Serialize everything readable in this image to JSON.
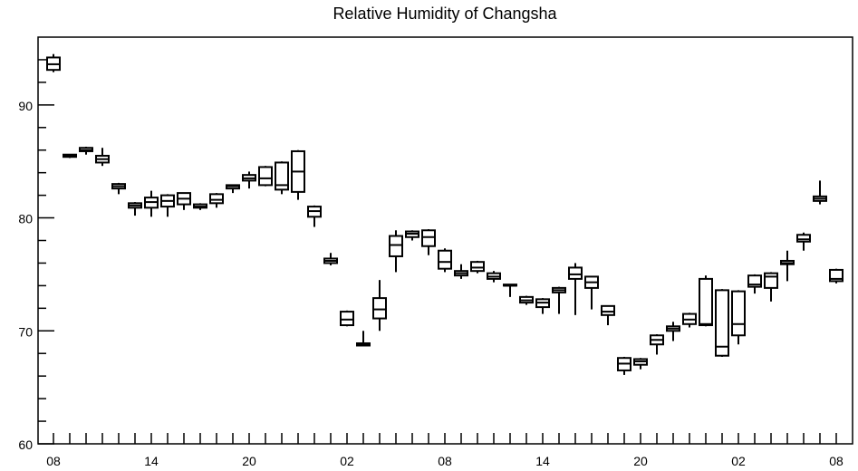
{
  "chart_data": {
    "type": "box",
    "title": "Relative Humidity of Changsha",
    "xlabel": "",
    "ylabel": "",
    "ylim": [
      60,
      96
    ],
    "y_ticks": [
      60,
      70,
      80,
      90
    ],
    "x_ticks": [
      "08",
      "14",
      "20",
      "02",
      "08",
      "14",
      "20",
      "02",
      "08"
    ],
    "x_tick_hours": [
      0,
      6,
      12,
      18,
      24,
      30,
      36,
      42,
      48
    ],
    "grid": false,
    "boxes": [
      {
        "hour": 0,
        "min": 92.9,
        "q1": 93.1,
        "median": 93.6,
        "q3": 94.2,
        "max": 94.5
      },
      {
        "hour": 1,
        "min": 85.3,
        "q1": 85.4,
        "median": 85.5,
        "q3": 85.6,
        "max": 85.6
      },
      {
        "hour": 2,
        "min": 85.6,
        "q1": 85.9,
        "median": 86.0,
        "q3": 86.2,
        "max": 86.3
      },
      {
        "hour": 3,
        "min": 84.6,
        "q1": 84.9,
        "median": 85.2,
        "q3": 85.5,
        "max": 86.2
      },
      {
        "hour": 4,
        "min": 82.1,
        "q1": 82.6,
        "median": 82.8,
        "q3": 83.0,
        "max": 83.1
      },
      {
        "hour": 5,
        "min": 80.2,
        "q1": 80.9,
        "median": 81.1,
        "q3": 81.3,
        "max": 81.4
      },
      {
        "hour": 6,
        "min": 80.1,
        "q1": 80.9,
        "median": 81.4,
        "q3": 81.8,
        "max": 82.4
      },
      {
        "hour": 7,
        "min": 80.1,
        "q1": 81.0,
        "median": 81.5,
        "q3": 82.0,
        "max": 82.1
      },
      {
        "hour": 8,
        "min": 80.7,
        "q1": 81.2,
        "median": 81.7,
        "q3": 82.2,
        "max": 82.2
      },
      {
        "hour": 9,
        "min": 80.7,
        "q1": 80.9,
        "median": 81.0,
        "q3": 81.2,
        "max": 81.3
      },
      {
        "hour": 10,
        "min": 80.9,
        "q1": 81.3,
        "median": 81.6,
        "q3": 82.1,
        "max": 82.2
      },
      {
        "hour": 11,
        "min": 82.2,
        "q1": 82.6,
        "median": 82.8,
        "q3": 82.9,
        "max": 82.9
      },
      {
        "hour": 12,
        "min": 82.6,
        "q1": 83.3,
        "median": 83.5,
        "q3": 83.8,
        "max": 84.1
      },
      {
        "hour": 13,
        "min": 82.8,
        "q1": 82.9,
        "median": 83.5,
        "q3": 84.5,
        "max": 84.6
      },
      {
        "hour": 14,
        "min": 82.1,
        "q1": 82.5,
        "median": 82.9,
        "q3": 84.9,
        "max": 85.0
      },
      {
        "hour": 15,
        "min": 81.6,
        "q1": 82.3,
        "median": 84.1,
        "q3": 85.9,
        "max": 86.0
      },
      {
        "hour": 16,
        "min": 79.2,
        "q1": 80.1,
        "median": 80.6,
        "q3": 81.0,
        "max": 81.1
      },
      {
        "hour": 17,
        "min": 75.8,
        "q1": 76.0,
        "median": 76.2,
        "q3": 76.4,
        "max": 76.9
      },
      {
        "hour": 18,
        "min": 70.4,
        "q1": 70.5,
        "median": 71.0,
        "q3": 71.7,
        "max": 71.8
      },
      {
        "hour": 19,
        "min": 68.7,
        "q1": 68.7,
        "median": 68.8,
        "q3": 68.9,
        "max": 70.0
      },
      {
        "hour": 20,
        "min": 70.0,
        "q1": 71.1,
        "median": 71.9,
        "q3": 72.9,
        "max": 74.5
      },
      {
        "hour": 21,
        "min": 75.2,
        "q1": 76.6,
        "median": 77.6,
        "q3": 78.4,
        "max": 78.9
      },
      {
        "hour": 22,
        "min": 78.0,
        "q1": 78.3,
        "median": 78.6,
        "q3": 78.8,
        "max": 78.9
      },
      {
        "hour": 23,
        "min": 76.7,
        "q1": 77.5,
        "median": 78.3,
        "q3": 78.9,
        "max": 79.0
      },
      {
        "hour": 24,
        "min": 75.2,
        "q1": 75.5,
        "median": 76.1,
        "q3": 77.1,
        "max": 77.3
      },
      {
        "hour": 25,
        "min": 74.6,
        "q1": 74.9,
        "median": 75.1,
        "q3": 75.3,
        "max": 75.9
      },
      {
        "hour": 26,
        "min": 75.1,
        "q1": 75.3,
        "median": 75.6,
        "q3": 76.1,
        "max": 76.2
      },
      {
        "hour": 27,
        "min": 74.3,
        "q1": 74.6,
        "median": 74.8,
        "q3": 75.1,
        "max": 75.3
      },
      {
        "hour": 28,
        "min": 73.0,
        "q1": 74.0,
        "median": 74.0,
        "q3": 74.1,
        "max": 74.1
      },
      {
        "hour": 29,
        "min": 72.3,
        "q1": 72.5,
        "median": 72.7,
        "q3": 73.0,
        "max": 73.1
      },
      {
        "hour": 30,
        "min": 71.5,
        "q1": 72.1,
        "median": 72.5,
        "q3": 72.8,
        "max": 72.9
      },
      {
        "hour": 31,
        "min": 71.5,
        "q1": 73.4,
        "median": 73.6,
        "q3": 73.8,
        "max": 73.9
      },
      {
        "hour": 32,
        "min": 71.4,
        "q1": 74.6,
        "median": 75.0,
        "q3": 75.6,
        "max": 76.0
      },
      {
        "hour": 33,
        "min": 71.9,
        "q1": 73.8,
        "median": 74.3,
        "q3": 74.8,
        "max": 74.8
      },
      {
        "hour": 34,
        "min": 70.5,
        "q1": 71.4,
        "median": 71.7,
        "q3": 72.2,
        "max": 72.2
      },
      {
        "hour": 35,
        "min": 66.1,
        "q1": 66.5,
        "median": 67.1,
        "q3": 67.6,
        "max": 67.7
      },
      {
        "hour": 36,
        "min": 66.6,
        "q1": 67.0,
        "median": 67.3,
        "q3": 67.5,
        "max": 67.6
      },
      {
        "hour": 37,
        "min": 67.9,
        "q1": 68.8,
        "median": 69.2,
        "q3": 69.6,
        "max": 69.7
      },
      {
        "hour": 38,
        "min": 69.1,
        "q1": 70.0,
        "median": 70.2,
        "q3": 70.4,
        "max": 70.8
      },
      {
        "hour": 39,
        "min": 70.3,
        "q1": 70.6,
        "median": 71.0,
        "q3": 71.5,
        "max": 71.6
      },
      {
        "hour": 40,
        "min": 70.4,
        "q1": 70.5,
        "median": 70.6,
        "q3": 74.6,
        "max": 74.9
      },
      {
        "hour": 41,
        "min": 67.7,
        "q1": 67.8,
        "median": 68.6,
        "q3": 73.6,
        "max": 73.7
      },
      {
        "hour": 42,
        "min": 68.8,
        "q1": 69.6,
        "median": 70.6,
        "q3": 73.5,
        "max": 73.6
      },
      {
        "hour": 43,
        "min": 73.3,
        "q1": 73.9,
        "median": 74.1,
        "q3": 74.9,
        "max": 75.0
      },
      {
        "hour": 44,
        "min": 72.6,
        "q1": 73.8,
        "median": 74.8,
        "q3": 75.1,
        "max": 75.2
      },
      {
        "hour": 45,
        "min": 74.4,
        "q1": 75.9,
        "median": 76.0,
        "q3": 76.2,
        "max": 77.1
      },
      {
        "hour": 46,
        "min": 77.1,
        "q1": 77.9,
        "median": 78.1,
        "q3": 78.5,
        "max": 78.7
      },
      {
        "hour": 47,
        "min": 81.2,
        "q1": 81.5,
        "median": 81.7,
        "q3": 81.9,
        "max": 83.3
      },
      {
        "hour": 48,
        "min": 74.2,
        "q1": 74.4,
        "median": 74.6,
        "q3": 75.4,
        "max": 75.5
      }
    ]
  }
}
